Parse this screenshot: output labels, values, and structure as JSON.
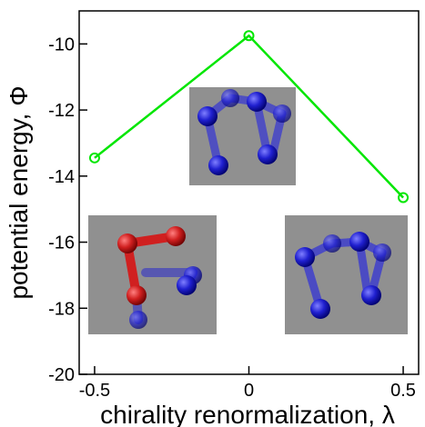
{
  "chart_data": {
    "type": "line",
    "xlabel": "chirality renormalization,  λ",
    "ylabel": "potential energy,  Φ",
    "x": [
      -0.5,
      0,
      0.5
    ],
    "series": [
      {
        "color": "#00e600",
        "values": [
          -13.45,
          -9.75,
          -14.65
        ]
      }
    ],
    "xlim": [
      -0.55,
      0.55
    ],
    "ylim": [
      -20,
      -9
    ],
    "xticks": [
      -0.5,
      0,
      0.5
    ],
    "yticks": [
      -20,
      -18,
      -16,
      -14,
      -12,
      -10
    ]
  }
}
